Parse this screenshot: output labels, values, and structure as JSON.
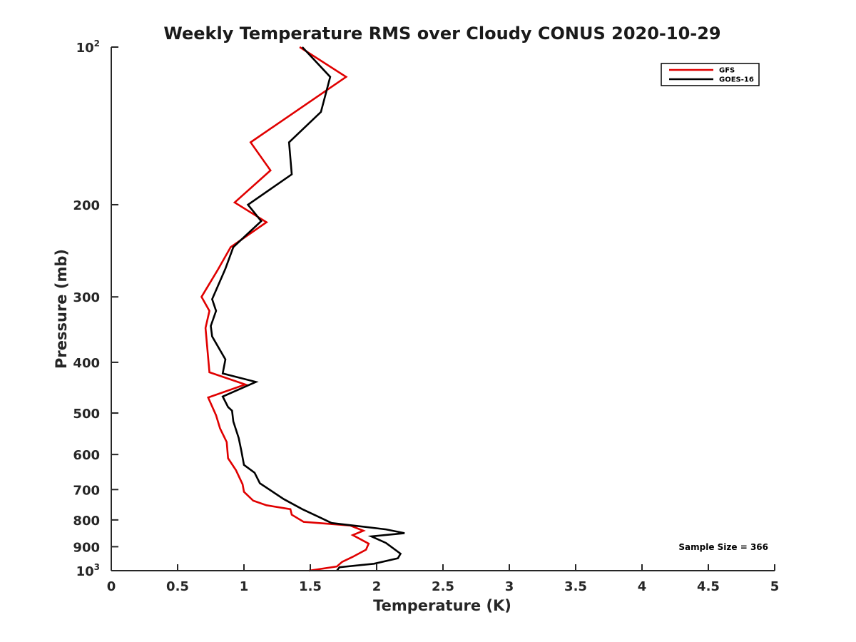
{
  "chart_data": {
    "type": "line",
    "title": "Weekly Temperature RMS over Cloudy CONUS 2020-10-29",
    "xlabel": "Temperature (K)",
    "ylabel": "Pressure (mb)",
    "xlim": [
      0,
      5
    ],
    "ylim": [
      100,
      1000
    ],
    "y_scale": "log",
    "y_reversed": true,
    "x_ticks": [
      {
        "value": 0,
        "label": "0"
      },
      {
        "value": 0.5,
        "label": "0.5"
      },
      {
        "value": 1,
        "label": "1"
      },
      {
        "value": 1.5,
        "label": "1.5"
      },
      {
        "value": 2,
        "label": "2"
      },
      {
        "value": 2.5,
        "label": "2.5"
      },
      {
        "value": 3,
        "label": "3"
      },
      {
        "value": 3.5,
        "label": "3.5"
      },
      {
        "value": 4,
        "label": "4"
      },
      {
        "value": 4.5,
        "label": "4.5"
      },
      {
        "value": 5,
        "label": "5"
      }
    ],
    "y_ticks": [
      {
        "value": 100,
        "label": "10",
        "exp": "2"
      },
      {
        "value": 200,
        "label": "200"
      },
      {
        "value": 300,
        "label": "300"
      },
      {
        "value": 400,
        "label": "400"
      },
      {
        "value": 500,
        "label": "500"
      },
      {
        "value": 600,
        "label": "600"
      },
      {
        "value": 700,
        "label": "700"
      },
      {
        "value": 800,
        "label": "800"
      },
      {
        "value": 900,
        "label": "900"
      },
      {
        "value": 1000,
        "label": "10",
        "exp": "3"
      }
    ],
    "grid": false,
    "legend": {
      "position": "top-right"
    },
    "annotation": "Sample Size = 366",
    "series": [
      {
        "name": "GFS",
        "color": "#e00000",
        "points": [
          [
            1.42,
            100
          ],
          [
            1.77,
            114
          ],
          [
            1.05,
            152
          ],
          [
            1.2,
            172
          ],
          [
            0.93,
            198
          ],
          [
            1.17,
            216
          ],
          [
            0.9,
            241
          ],
          [
            0.8,
            267
          ],
          [
            0.68,
            300
          ],
          [
            0.74,
            319
          ],
          [
            0.71,
            344
          ],
          [
            0.74,
            418
          ],
          [
            1.01,
            441
          ],
          [
            0.73,
            467
          ],
          [
            0.79,
            505
          ],
          [
            0.82,
            535
          ],
          [
            0.87,
            568
          ],
          [
            0.88,
            610
          ],
          [
            0.94,
            643
          ],
          [
            0.99,
            684
          ],
          [
            1.0,
            707
          ],
          [
            1.07,
            735
          ],
          [
            1.17,
            750
          ],
          [
            1.35,
            763
          ],
          [
            1.36,
            782
          ],
          [
            1.45,
            807
          ],
          [
            1.8,
            820
          ],
          [
            1.9,
            839
          ],
          [
            1.82,
            855
          ],
          [
            1.94,
            888
          ],
          [
            1.92,
            912
          ],
          [
            1.82,
            941
          ],
          [
            1.74,
            962
          ],
          [
            1.7,
            982
          ],
          [
            1.49,
            1000
          ]
        ]
      },
      {
        "name": "GOES-16",
        "color": "#000000",
        "points": [
          [
            1.44,
            100
          ],
          [
            1.65,
            114
          ],
          [
            1.58,
            133
          ],
          [
            1.34,
            152
          ],
          [
            1.36,
            175
          ],
          [
            1.03,
            200
          ],
          [
            1.13,
            215
          ],
          [
            0.92,
            241
          ],
          [
            0.86,
            265
          ],
          [
            0.76,
            303
          ],
          [
            0.79,
            319
          ],
          [
            0.75,
            341
          ],
          [
            0.76,
            357
          ],
          [
            0.86,
            395
          ],
          [
            0.84,
            420
          ],
          [
            1.09,
            436
          ],
          [
            0.84,
            465
          ],
          [
            0.88,
            487
          ],
          [
            0.91,
            495
          ],
          [
            0.92,
            519
          ],
          [
            0.96,
            558
          ],
          [
            0.98,
            590
          ],
          [
            1.0,
            628
          ],
          [
            1.08,
            650
          ],
          [
            1.12,
            681
          ],
          [
            1.3,
            730
          ],
          [
            1.44,
            763
          ],
          [
            1.58,
            793
          ],
          [
            1.66,
            811
          ],
          [
            2.07,
            834
          ],
          [
            2.21,
            848
          ],
          [
            1.96,
            860
          ],
          [
            2.07,
            885
          ],
          [
            2.18,
            928
          ],
          [
            2.16,
            947
          ],
          [
            1.98,
            970
          ],
          [
            1.72,
            985
          ],
          [
            1.7,
            1000
          ]
        ]
      }
    ]
  }
}
